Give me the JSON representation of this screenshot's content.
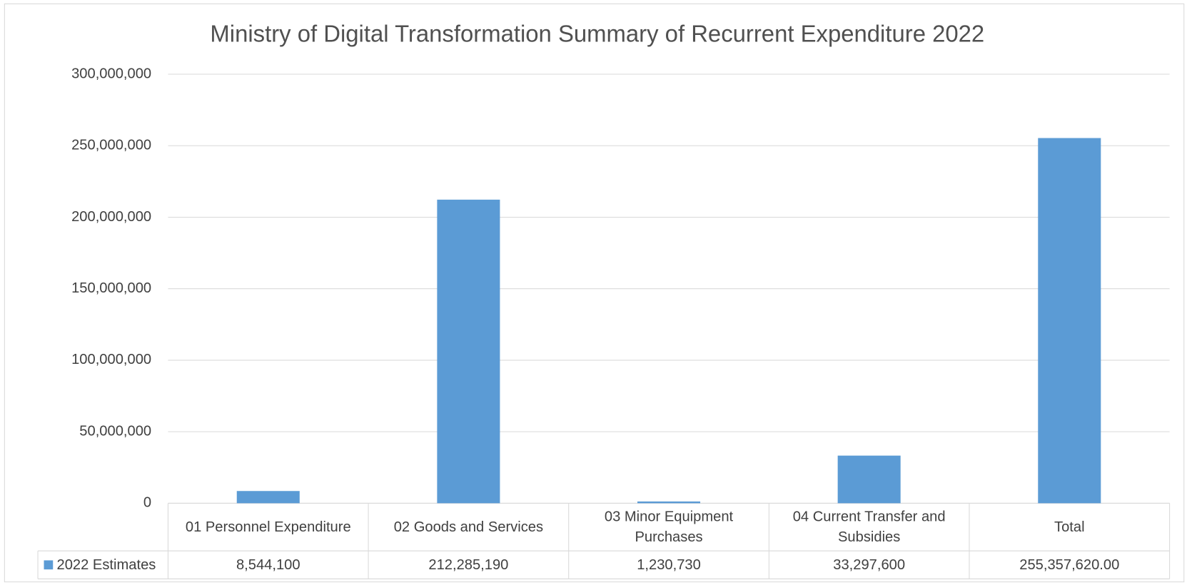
{
  "chart_data": {
    "type": "bar",
    "title": "Ministry of Digital Transformation Summary of Recurrent Expenditure 2022",
    "categories": [
      "01 Personnel Expenditure",
      "02 Goods and Services",
      "03 Minor Equipment Purchases",
      "04 Current Transfer and Subsidies",
      "Total"
    ],
    "series": [
      {
        "name": "2022 Estimates",
        "color": "#5b9bd5",
        "values": [
          8544100,
          212285190,
          1230730,
          33297600,
          255357620
        ],
        "value_labels": [
          "8,544,100",
          "212,285,190",
          "1,230,730",
          "33,297,600",
          "255,357,620.00"
        ]
      }
    ],
    "ylim": [
      0,
      300000000
    ],
    "yticks": [
      0,
      {
        "value": 50000000,
        "label": "50,000,000"
      },
      {
        "value": 100000000,
        "label": "100,000,000"
      },
      {
        "value": 150000000,
        "label": "150,000,000"
      },
      {
        "value": 200000000,
        "label": "200,000,000"
      },
      {
        "value": 250000000,
        "label": "250,000,000"
      },
      {
        "value": 300000000,
        "label": "300,000,000"
      }
    ],
    "grid": true
  }
}
